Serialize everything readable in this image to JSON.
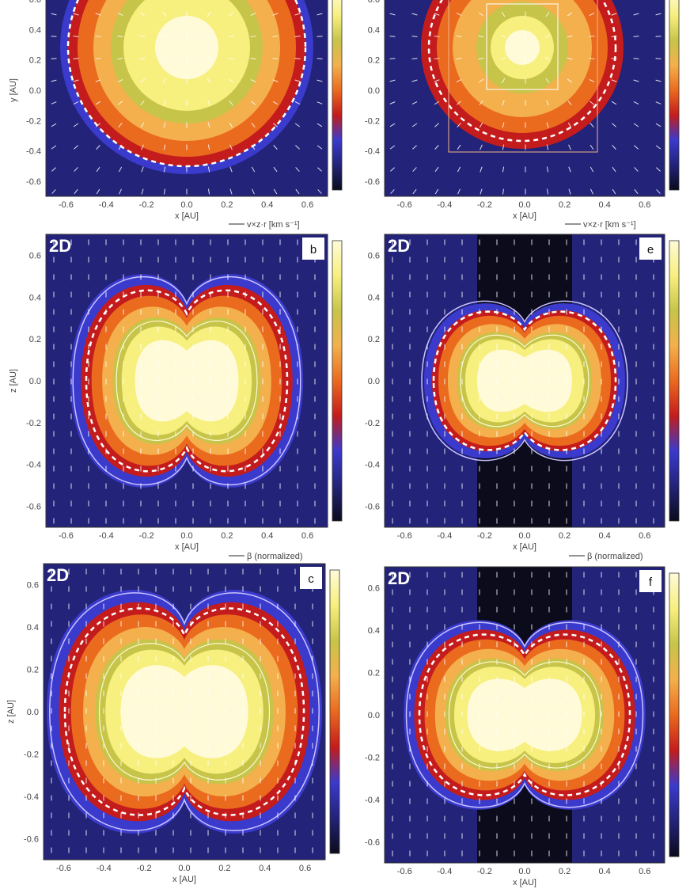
{
  "figure": {
    "colorscale": [
      "#0b0b1c",
      "#23237a",
      "#3a3acc",
      "#c41c1c",
      "#ea6a1e",
      "#f3b04c",
      "#c7c44a",
      "#f7ef7e",
      "#fffbd8"
    ],
    "tick_labels": [
      "-0.6",
      "-0.4",
      "-0.2",
      "0.0",
      "0.2",
      "0.4",
      "0.6"
    ],
    "x_axis_label": "x [AU]",
    "y_axis_label": "y [AU]",
    "z_axis_label": "z [AU]",
    "velocity_key_label": "v×z·r [km s⁻¹]",
    "vector_key_label": "β (normalized)",
    "panels": [
      {
        "id": "a",
        "letter": "",
        "tag": "",
        "ylabel": "y [AU]",
        "xlabel": "x [AU]",
        "cbar_ticks": [
          "",
          "",
          "",
          ""
        ]
      },
      {
        "id": "d",
        "letter": "",
        "tag": "",
        "ylabel": "",
        "xlabel": "x [AU]",
        "cbar_ticks": [
          "",
          "",
          "",
          ""
        ]
      },
      {
        "id": "b",
        "letter": "b",
        "tag": "2D",
        "ylabel": "z [AU]",
        "xlabel": "x [AU]",
        "cbar_ticks": [
          "",
          "",
          "",
          ""
        ]
      },
      {
        "id": "e",
        "letter": "e",
        "tag": "2D",
        "ylabel": "",
        "xlabel": "x [AU]",
        "cbar_ticks": [
          "",
          "",
          "",
          ""
        ]
      },
      {
        "id": "c",
        "letter": "c",
        "tag": "2D",
        "ylabel": "z [AU]",
        "xlabel": "x [AU]",
        "cbar_ticks": [
          "",
          "",
          "",
          ""
        ]
      },
      {
        "id": "f",
        "letter": "f",
        "tag": "2D",
        "ylabel": "",
        "xlabel": "x [AU]",
        "cbar_ticks": [
          "",
          "",
          "",
          ""
        ]
      }
    ]
  }
}
